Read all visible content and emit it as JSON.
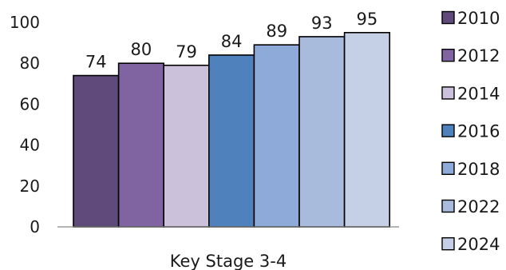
{
  "chart_data": {
    "type": "bar",
    "categories": [
      "Key Stage 3-4"
    ],
    "series": [
      {
        "name": "2010",
        "values": [
          74
        ],
        "color": "#604a7b"
      },
      {
        "name": "2012",
        "values": [
          80
        ],
        "color": "#8064a2"
      },
      {
        "name": "2014",
        "values": [
          79
        ],
        "color": "#ccc1da"
      },
      {
        "name": "2016",
        "values": [
          84
        ],
        "color": "#4f81bd"
      },
      {
        "name": "2018",
        "values": [
          89
        ],
        "color": "#8eaad8"
      },
      {
        "name": "2022",
        "values": [
          93
        ],
        "color": "#a9bbdc"
      },
      {
        "name": "2024",
        "values": [
          95
        ],
        "color": "#c5d0e6"
      }
    ],
    "y_ticks": [
      "0",
      "20",
      "40",
      "60",
      "80",
      "100"
    ],
    "ylim": [
      0,
      100
    ],
    "grid": false,
    "legend_position": "right",
    "data_labels": true
  }
}
